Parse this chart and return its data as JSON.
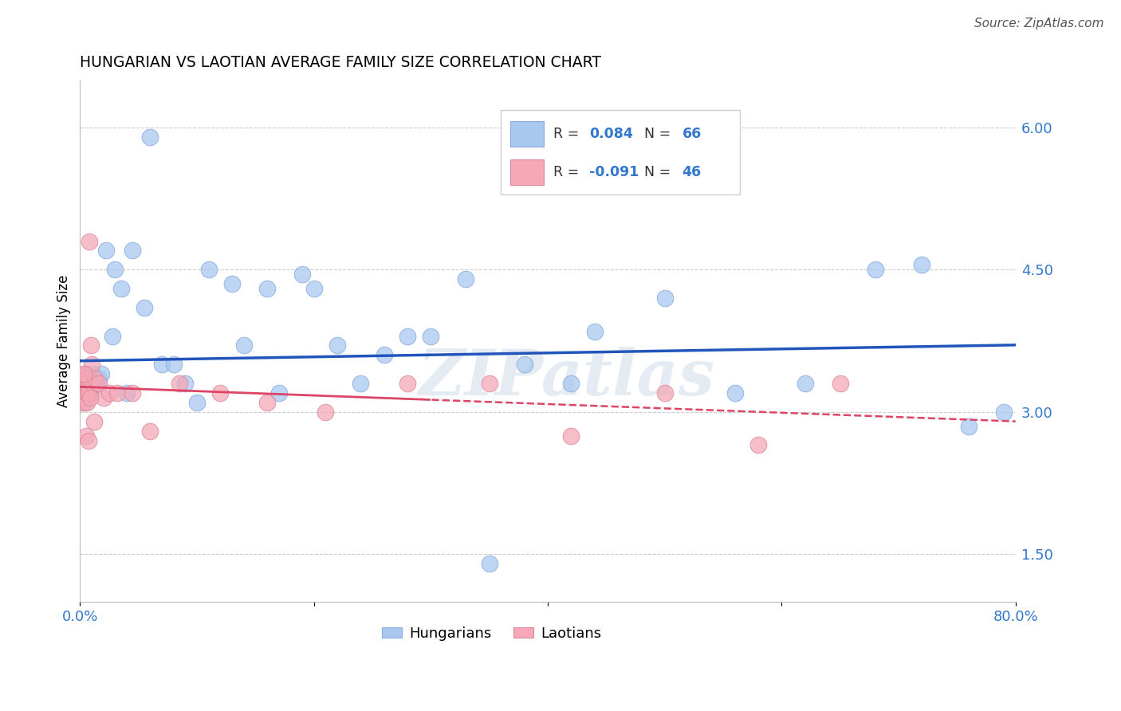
{
  "title": "HUNGARIAN VS LAOTIAN AVERAGE FAMILY SIZE CORRELATION CHART",
  "source": "Source: ZipAtlas.com",
  "ylabel": "Average Family Size",
  "yticks": [
    1.5,
    3.0,
    4.5,
    6.0
  ],
  "xlim": [
    0.0,
    80.0
  ],
  "ylim": [
    1.0,
    6.5
  ],
  "hungarian_R": 0.084,
  "hungarian_N": 66,
  "laotian_R": -0.091,
  "laotian_N": 46,
  "hungarian_color": "#a8c8f0",
  "laotian_color": "#f4a8b8",
  "hungarian_line_color": "#2255bb",
  "laotian_line_color": "#dd4466",
  "watermark": "ZIPatlas",
  "hung_x": [
    0.2,
    0.25,
    0.3,
    0.32,
    0.35,
    0.37,
    0.4,
    0.42,
    0.45,
    0.48,
    0.5,
    0.52,
    0.55,
    0.58,
    0.6,
    0.62,
    0.65,
    0.68,
    0.7,
    0.75,
    0.8,
    0.85,
    0.9,
    0.95,
    1.0,
    1.1,
    1.2,
    1.4,
    1.6,
    1.8,
    2.2,
    2.8,
    3.5,
    4.5,
    5.5,
    7.0,
    9.0,
    11.0,
    14.0,
    17.0,
    20.0,
    24.0,
    28.0,
    33.0,
    38.0,
    44.0,
    50.0,
    56.0,
    62.0,
    68.0,
    72.0,
    76.0,
    79.0,
    3.0,
    4.0,
    6.0,
    8.0,
    10.0,
    13.0,
    16.0,
    19.0,
    22.0,
    26.0,
    30.0,
    35.0,
    42.0
  ],
  "hung_y": [
    3.2,
    3.15,
    3.3,
    3.1,
    3.25,
    3.2,
    3.3,
    3.15,
    3.4,
    3.2,
    3.25,
    3.3,
    3.35,
    3.2,
    3.3,
    3.15,
    3.2,
    3.25,
    3.3,
    3.2,
    3.3,
    3.25,
    3.35,
    3.2,
    3.3,
    3.4,
    3.35,
    3.3,
    3.35,
    3.4,
    4.7,
    3.8,
    4.3,
    4.7,
    4.1,
    3.5,
    3.3,
    4.5,
    3.7,
    3.2,
    4.3,
    3.3,
    3.8,
    4.4,
    3.5,
    3.85,
    4.2,
    3.2,
    3.3,
    4.5,
    4.55,
    2.85,
    3.0,
    4.5,
    3.2,
    5.9,
    3.5,
    3.1,
    4.35,
    4.3,
    4.45,
    3.7,
    3.6,
    3.8,
    1.4,
    3.3
  ],
  "laot_x": [
    0.15,
    0.2,
    0.25,
    0.28,
    0.3,
    0.32,
    0.35,
    0.38,
    0.4,
    0.42,
    0.45,
    0.48,
    0.5,
    0.52,
    0.55,
    0.58,
    0.6,
    0.65,
    0.7,
    0.75,
    0.8,
    0.9,
    1.0,
    1.1,
    1.3,
    1.6,
    2.0,
    2.5,
    3.2,
    4.5,
    6.0,
    8.5,
    12.0,
    16.0,
    21.0,
    28.0,
    35.0,
    42.0,
    50.0,
    58.0,
    65.0,
    0.35,
    0.55,
    0.72,
    0.85,
    1.2
  ],
  "laot_y": [
    3.3,
    3.2,
    3.15,
    3.3,
    3.25,
    3.1,
    3.35,
    3.2,
    3.3,
    3.15,
    3.4,
    3.25,
    3.3,
    3.2,
    3.35,
    3.1,
    3.3,
    3.25,
    3.2,
    3.35,
    4.8,
    3.7,
    3.5,
    3.3,
    3.35,
    3.3,
    3.15,
    3.2,
    3.2,
    3.2,
    2.8,
    3.3,
    3.2,
    3.1,
    3.0,
    3.3,
    3.3,
    2.75,
    3.2,
    2.65,
    3.3,
    3.4,
    2.75,
    2.7,
    3.15,
    2.9
  ]
}
